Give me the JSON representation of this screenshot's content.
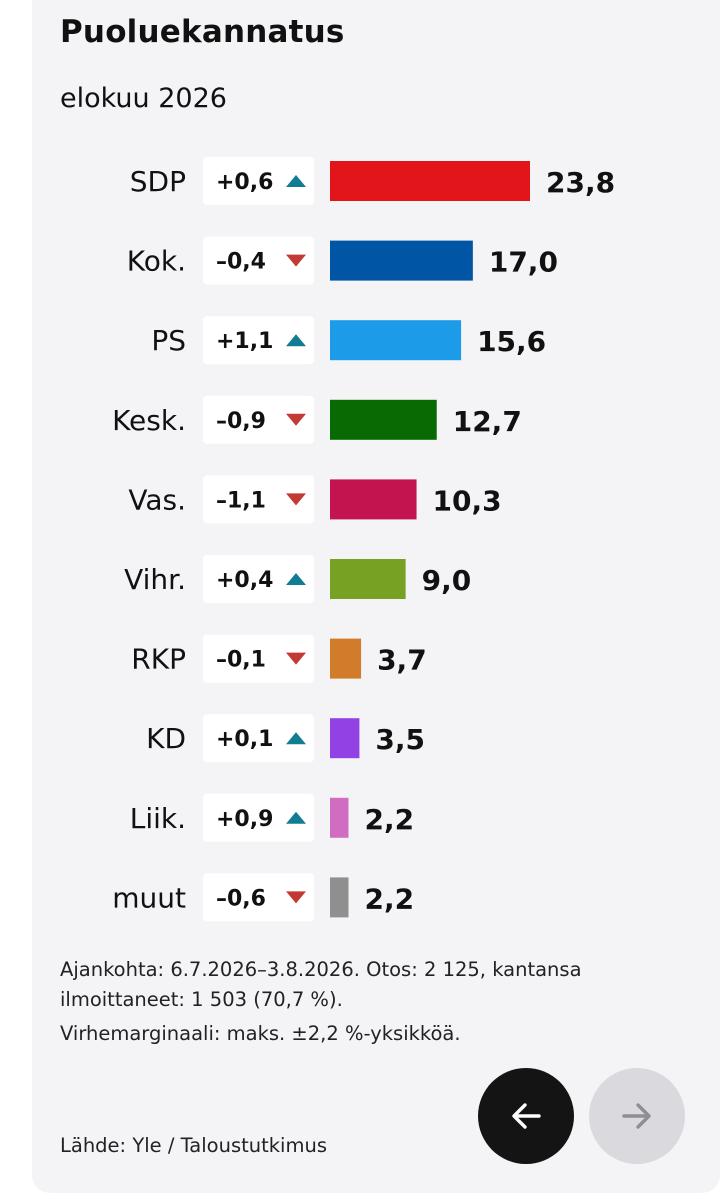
{
  "header": {
    "title": "Puoluekannatus",
    "subtitle": "elokuu 2026"
  },
  "chart_data": {
    "type": "bar",
    "orientation": "horizontal",
    "categories": [
      "SDP",
      "Kok.",
      "PS",
      "Kesk.",
      "Vas.",
      "Vihr.",
      "RKP",
      "KD",
      "Liik.",
      "muut"
    ],
    "values": [
      23.8,
      17.0,
      15.6,
      12.7,
      10.3,
      9.0,
      3.7,
      3.5,
      2.2,
      2.2
    ],
    "value_labels": [
      "23,8",
      "17,0",
      "15,6",
      "12,7",
      "10,3",
      "9,0",
      "3,7",
      "3,5",
      "2,2",
      "2,2"
    ],
    "changes": [
      0.6,
      -0.4,
      1.1,
      -0.9,
      -1.1,
      0.4,
      -0.1,
      0.1,
      0.9,
      -0.6
    ],
    "change_labels": [
      "+0,6",
      "–0,4",
      "+1,1",
      "–0,9",
      "–1,1",
      "+0,4",
      "–0,1",
      "+0,1",
      "+0,9",
      "–0,6"
    ],
    "colors": [
      "#e2161a",
      "#0056a4",
      "#1c9be8",
      "#076a02",
      "#c3144f",
      "#76a123",
      "#d07c2b",
      "#9241e5",
      "#d06dc3",
      "#8f8f8f"
    ],
    "arrow_up_color": "#127c93",
    "arrow_down_color": "#c33a35",
    "grid": false,
    "legend": "none"
  },
  "notes": {
    "line1": "Ajankohta: 6.7.2026–3.8.2026. Otos: 2 125, kantansa",
    "line2": "ilmoittaneet: 1 503 (70,7 %).",
    "line3": "Virhemarginaali: maks. ±2,2 %-yksikköä."
  },
  "source": "Lähde: Yle / Taloustutkimus",
  "nav": {
    "prev_icon": "arrow-left-icon",
    "next_icon": "arrow-right-icon"
  }
}
